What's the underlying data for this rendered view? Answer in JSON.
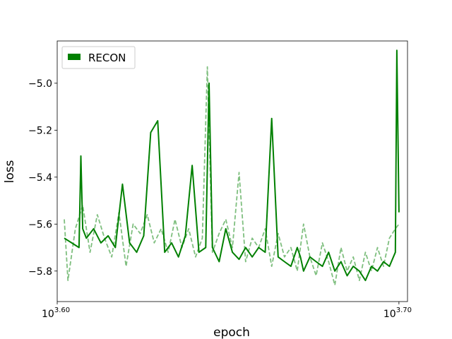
{
  "chart_data": {
    "type": "line",
    "xlabel": "epoch",
    "ylabel": "loss",
    "x_scale": "log",
    "xlim": [
      3981,
      5041
    ],
    "ylim": [
      -5.93,
      -4.82
    ],
    "x_ticks": [
      {
        "value": 3981,
        "base": "10",
        "exp": "3.60"
      },
      {
        "value": 5012,
        "base": "10",
        "exp": "3.70"
      }
    ],
    "y_ticks": [
      {
        "value": -5.0,
        "label": "−5.0"
      },
      {
        "value": -5.2,
        "label": "−5.2"
      },
      {
        "value": -5.4,
        "label": "−5.4"
      },
      {
        "value": -5.6,
        "label": "−5.6"
      },
      {
        "value": -5.8,
        "label": "−5.8"
      }
    ],
    "grid": false,
    "legend": {
      "position": "top-left",
      "entries": [
        "RECON"
      ]
    },
    "colors": {
      "primary": "#008000",
      "secondary": "#7fbf7f"
    },
    "series": [
      {
        "name": "RECON",
        "style": "solid",
        "color": "#008000",
        "x": [
          4000,
          4020,
          4040,
          4045,
          4050,
          4060,
          4080,
          4100,
          4120,
          4140,
          4160,
          4180,
          4200,
          4220,
          4240,
          4260,
          4280,
          4300,
          4320,
          4340,
          4360,
          4380,
          4400,
          4410,
          4420,
          4440,
          4460,
          4480,
          4500,
          4520,
          4540,
          4560,
          4580,
          4600,
          4620,
          4640,
          4660,
          4680,
          4690,
          4700,
          4720,
          4740,
          4760,
          4780,
          4800,
          4820,
          4840,
          4860,
          4880,
          4900,
          4920,
          4940,
          4960,
          4980,
          5000,
          5005,
          5012
        ],
        "y": [
          -5.66,
          -5.68,
          -5.7,
          -5.31,
          -5.62,
          -5.66,
          -5.62,
          -5.68,
          -5.65,
          -5.7,
          -5.43,
          -5.68,
          -5.72,
          -5.65,
          -5.21,
          -5.16,
          -5.72,
          -5.68,
          -5.74,
          -5.65,
          -5.35,
          -5.72,
          -5.7,
          -5.0,
          -5.7,
          -5.76,
          -5.62,
          -5.72,
          -5.75,
          -5.7,
          -5.74,
          -5.7,
          -5.72,
          -5.15,
          -5.74,
          -5.76,
          -5.78,
          -5.7,
          -5.74,
          -5.8,
          -5.74,
          -5.76,
          -5.78,
          -5.72,
          -5.8,
          -5.76,
          -5.82,
          -5.78,
          -5.8,
          -5.84,
          -5.78,
          -5.8,
          -5.76,
          -5.78,
          -5.72,
          -4.86,
          -5.55
        ]
      },
      {
        "style": "dashed",
        "color": "#7fbf7f",
        "x": [
          4000,
          4010,
          4030,
          4050,
          4070,
          4090,
          4110,
          4130,
          4150,
          4170,
          4190,
          4210,
          4230,
          4250,
          4270,
          4290,
          4310,
          4330,
          4350,
          4370,
          4390,
          4405,
          4420,
          4440,
          4460,
          4480,
          4500,
          4520,
          4540,
          4560,
          4580,
          4600,
          4620,
          4640,
          4660,
          4680,
          4700,
          4720,
          4740,
          4760,
          4780,
          4800,
          4820,
          4840,
          4860,
          4880,
          4900,
          4920,
          4940,
          4960,
          4980,
          5000,
          5012
        ],
        "y": [
          -5.58,
          -5.84,
          -5.62,
          -5.52,
          -5.72,
          -5.56,
          -5.66,
          -5.74,
          -5.55,
          -5.78,
          -5.6,
          -5.64,
          -5.56,
          -5.68,
          -5.62,
          -5.72,
          -5.58,
          -5.7,
          -5.62,
          -5.74,
          -5.66,
          -4.93,
          -5.72,
          -5.64,
          -5.58,
          -5.7,
          -5.38,
          -5.76,
          -5.66,
          -5.7,
          -5.62,
          -5.78,
          -5.64,
          -5.74,
          -5.7,
          -5.8,
          -5.6,
          -5.74,
          -5.82,
          -5.68,
          -5.76,
          -5.86,
          -5.7,
          -5.8,
          -5.74,
          -5.84,
          -5.72,
          -5.8,
          -5.7,
          -5.78,
          -5.66,
          -5.62,
          -5.6
        ]
      }
    ]
  }
}
